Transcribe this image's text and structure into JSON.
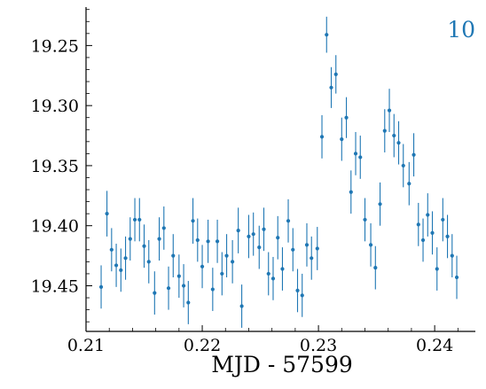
{
  "chart_data": {
    "type": "scatter",
    "panel_label": "10",
    "xlabel": "MJD - 57599",
    "ylabel": "",
    "xlim": [
      0.21,
      0.2435
    ],
    "ylim": [
      19.218,
      19.488
    ],
    "y_inverted": true,
    "grid": false,
    "x_ticks": [
      "0.21",
      "0.22",
      "0.23",
      "0.24"
    ],
    "x_tick_values": [
      0.21,
      0.22,
      0.23,
      0.24
    ],
    "y_ticks": [
      "19.25",
      "19.30",
      "19.35",
      "19.40",
      "19.45"
    ],
    "y_tick_values": [
      19.25,
      19.3,
      19.35,
      19.4,
      19.45
    ],
    "colors": {
      "marker": "#1f77b4",
      "axes": "#000000",
      "panel_label": "#1f77b4"
    },
    "series": [
      {
        "x": [
          0.2113,
          0.2118,
          0.2122,
          0.2126,
          0.213,
          0.2134,
          0.2138,
          0.2142,
          0.2146,
          0.215,
          0.2154,
          0.2159,
          0.2163,
          0.2167,
          0.2171,
          0.2175,
          0.218,
          0.2184,
          0.2188,
          0.2192,
          0.2196,
          0.22,
          0.2205,
          0.2209,
          0.2213,
          0.2217,
          0.2221,
          0.2226,
          0.2231,
          0.2234,
          0.224,
          0.2244,
          0.2249,
          0.2253,
          0.2257,
          0.2261,
          0.2265,
          0.2269,
          0.2274,
          0.2278,
          0.2282,
          0.2286,
          0.229,
          0.2294,
          0.2299,
          0.2303,
          0.2307,
          0.2311,
          0.2315,
          0.232,
          0.2324,
          0.2328,
          0.2332,
          0.2336,
          0.234,
          0.2345,
          0.2349,
          0.2353,
          0.2357,
          0.2361,
          0.2365,
          0.2369,
          0.2373,
          0.2378,
          0.2382,
          0.2386,
          0.239,
          0.2394,
          0.2398,
          0.2402,
          0.2407,
          0.2411,
          0.2415,
          0.2419
        ],
        "y": [
          19.451,
          19.39,
          19.42,
          19.433,
          19.437,
          19.427,
          19.411,
          19.395,
          19.395,
          19.417,
          19.43,
          19.456,
          19.411,
          19.402,
          19.452,
          19.425,
          19.442,
          19.45,
          19.464,
          19.396,
          19.412,
          19.434,
          19.413,
          19.453,
          19.413,
          19.44,
          19.425,
          19.43,
          19.404,
          19.467,
          19.409,
          19.407,
          19.418,
          19.403,
          19.44,
          19.444,
          19.41,
          19.436,
          19.396,
          19.42,
          19.454,
          19.458,
          19.416,
          19.427,
          19.419,
          19.326,
          19.241,
          19.285,
          19.274,
          19.328,
          19.31,
          19.372,
          19.34,
          19.343,
          19.395,
          19.416,
          19.435,
          19.382,
          19.321,
          19.304,
          19.325,
          19.331,
          19.35,
          19.365,
          19.341,
          19.399,
          19.412,
          19.391,
          19.406,
          19.436,
          19.395,
          19.409,
          19.425,
          19.443
        ],
        "yerr": [
          0.018,
          0.019,
          0.018,
          0.018,
          0.018,
          0.018,
          0.018,
          0.018,
          0.018,
          0.018,
          0.018,
          0.018,
          0.018,
          0.018,
          0.018,
          0.018,
          0.018,
          0.018,
          0.018,
          0.019,
          0.018,
          0.018,
          0.018,
          0.018,
          0.018,
          0.018,
          0.018,
          0.018,
          0.019,
          0.018,
          0.018,
          0.018,
          0.018,
          0.018,
          0.018,
          0.018,
          0.018,
          0.018,
          0.018,
          0.018,
          0.018,
          0.018,
          0.018,
          0.018,
          0.018,
          0.018,
          0.015,
          0.017,
          0.016,
          0.018,
          0.017,
          0.018,
          0.018,
          0.018,
          0.018,
          0.018,
          0.018,
          0.018,
          0.018,
          0.018,
          0.018,
          0.018,
          0.018,
          0.018,
          0.018,
          0.018,
          0.018,
          0.018,
          0.018,
          0.018,
          0.018,
          0.018,
          0.018,
          0.018
        ]
      }
    ]
  }
}
